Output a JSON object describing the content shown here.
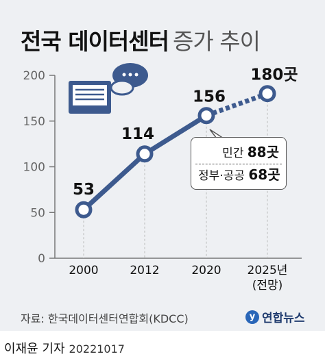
{
  "title": {
    "main": "전국 데이터센터",
    "sub": "증가 추이"
  },
  "chart_data": {
    "type": "line",
    "categories": [
      "2000",
      "2012",
      "2020",
      "2025년"
    ],
    "category_sublabels": [
      "",
      "",
      "",
      "(전망)"
    ],
    "values": [
      53,
      114,
      156,
      180
    ],
    "value_labels": [
      "53",
      "114",
      "156",
      "180곳"
    ],
    "projected_from_index": 2,
    "ylim": [
      0,
      200
    ],
    "yticks": [
      0,
      50,
      100,
      150,
      200
    ],
    "grid": "vertical dashed at categories",
    "line_color": "#3d5a8e"
  },
  "callout": {
    "row1_label": "민간",
    "row1_value": "88곳",
    "row2_label": "정부·공공",
    "row2_value": "68곳"
  },
  "source": "자료: 한국데이터센터연합회(KDCC)",
  "logo": {
    "mark": "y",
    "text": "연합뉴스"
  },
  "credit": {
    "name": "이재윤 기자",
    "date": "20221017"
  },
  "icons": [
    "server-tray-icon",
    "speech-bubble-icon"
  ]
}
